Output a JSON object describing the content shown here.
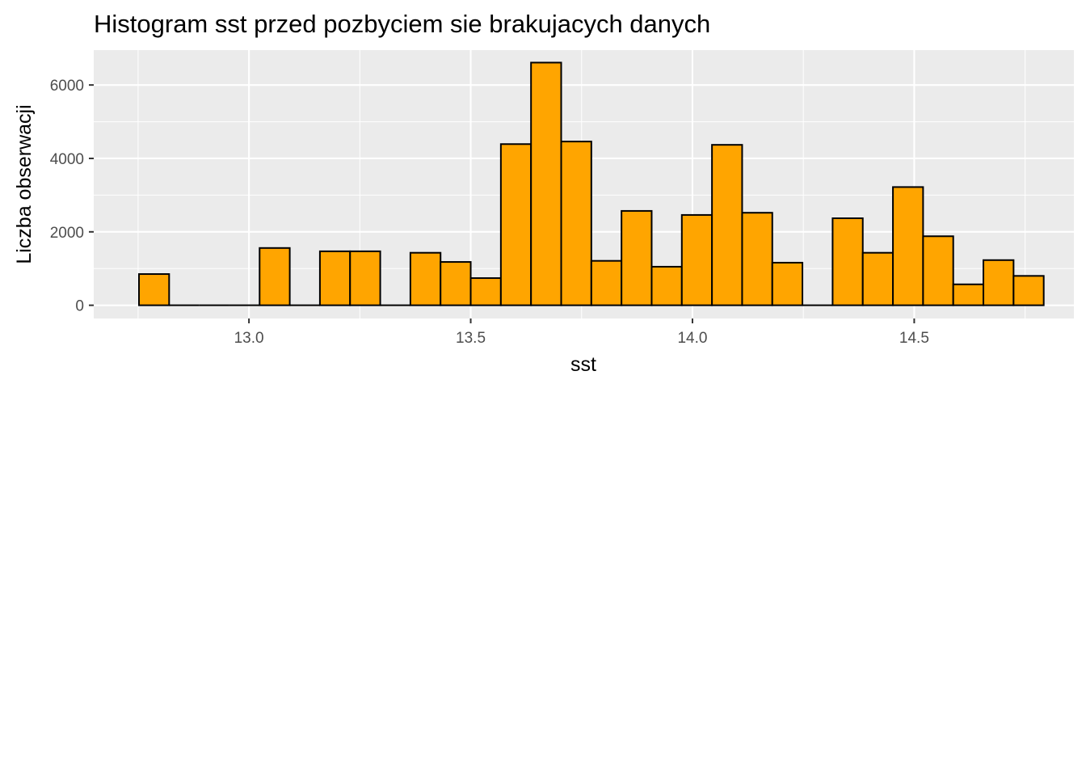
{
  "chart_data": {
    "type": "bar",
    "title": "Histogram sst przed pozbyciem sie brakujacych danych",
    "xlabel": "sst",
    "ylabel": "Liczba obserwacji",
    "x_ticks": [
      "13.0",
      "13.5",
      "14.0",
      "14.5"
    ],
    "x_tick_values": [
      13.0,
      13.5,
      14.0,
      14.5
    ],
    "y_ticks": [
      "0",
      "2000",
      "4000",
      "6000"
    ],
    "y_tick_values": [
      0,
      2000,
      4000,
      6000
    ],
    "xlim": [
      12.65,
      14.86
    ],
    "ylim": [
      -360,
      6950
    ],
    "bin_width": 0.068,
    "bin_centers": [
      12.786,
      12.854,
      12.922,
      12.99,
      13.058,
      13.126,
      13.194,
      13.262,
      13.33,
      13.398,
      13.466,
      13.534,
      13.602,
      13.67,
      13.738,
      13.806,
      13.874,
      13.942,
      14.01,
      14.078,
      14.146,
      14.214,
      14.282,
      14.35,
      14.418,
      14.486,
      14.554,
      14.622,
      14.69,
      14.758
    ],
    "values": [
      850,
      0,
      0,
      0,
      1560,
      0,
      1470,
      1470,
      0,
      1430,
      1180,
      740,
      4390,
      6610,
      4460,
      1210,
      2570,
      1050,
      2460,
      4370,
      2520,
      1160,
      0,
      2370,
      1430,
      3220,
      1880,
      570,
      1230,
      800
    ],
    "fill_color": "#FFA500",
    "outline_color": "#000000",
    "panel_background": "#EBEBEB",
    "grid": true,
    "legend": "none"
  }
}
